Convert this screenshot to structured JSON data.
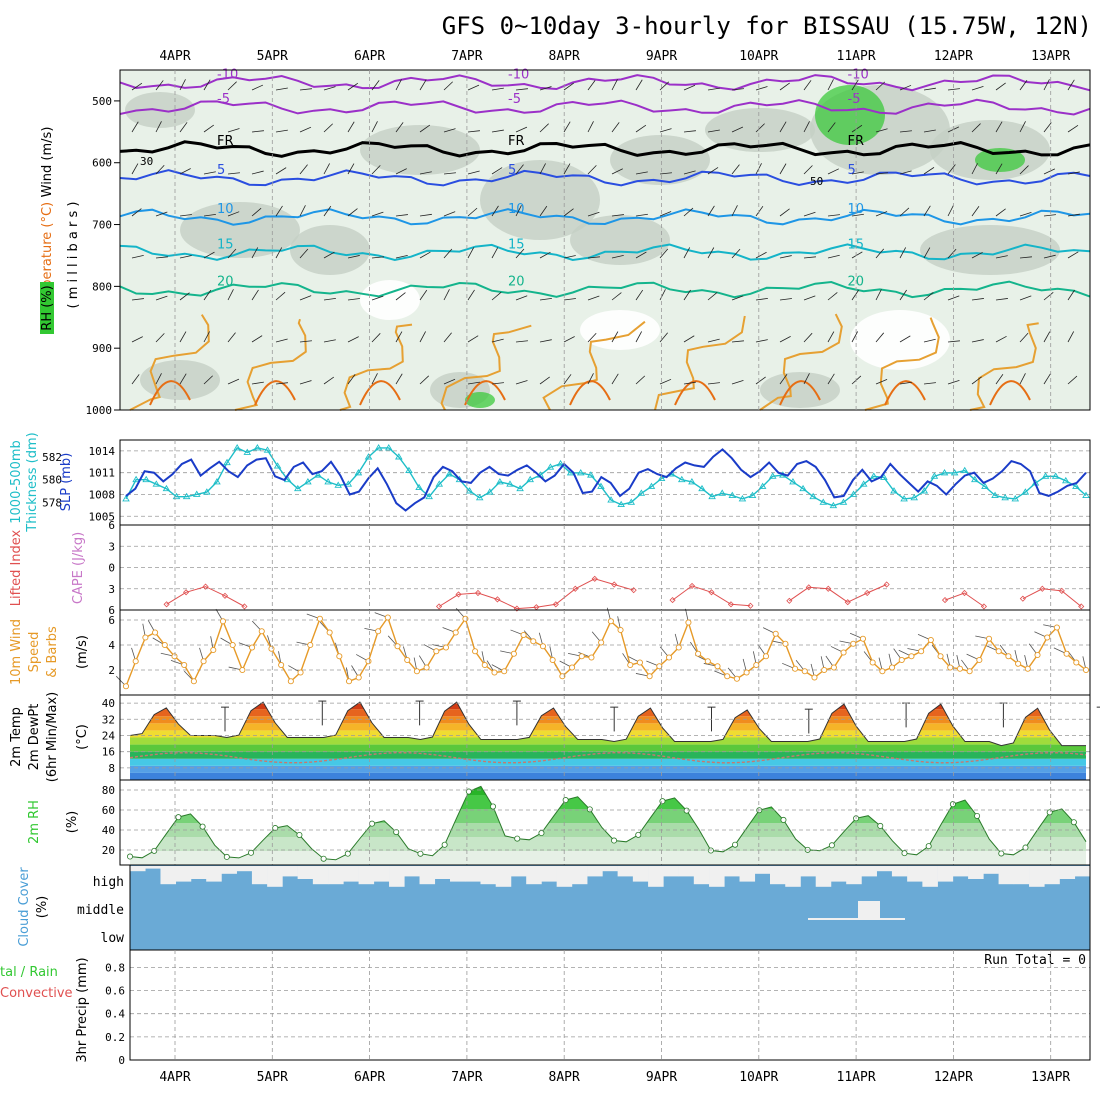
{
  "title": "GFS 0~10day 3-hourly for BISSAU (15.75W, 12N)",
  "dates": [
    "4APR",
    "5APR",
    "6APR",
    "7APR",
    "8APR",
    "9APR",
    "10APR",
    "11APR",
    "12APR",
    "13APR"
  ],
  "colors": {
    "rh_fill": "#32c832",
    "temp_5": "#9b30c8",
    "temp_fr": "#000000",
    "temp_m5": "#2a4ee0",
    "temp_10": "#1e96e6",
    "temp_15": "#14b4c8",
    "temp_20": "#14b48c",
    "temp_25": "#e6a032",
    "temp_30": "#e66e14",
    "temp_35": "#c82896",
    "thickness": "#1ebec8",
    "slp": "#1a3cc8",
    "li": "#e05050",
    "wind10": "#e69a28",
    "rh2m": "#32c832",
    "cloud": "#6aaad6",
    "cloud_gap": "#f0f0f0"
  },
  "labels": {
    "profile": [
      "Wind (m/s)",
      "Temperature (°C)",
      "RH (%)",
      "( m i l l i b a r s )"
    ],
    "thickness": [
      "1000-500mb",
      "Thickness (dm)",
      "SLP (mb)"
    ],
    "li": [
      "Lifted Index",
      "CAPE (J/kg)"
    ],
    "wind": [
      "10m Wind",
      "Speed",
      "& Barbs",
      "(m/s)"
    ],
    "temp": [
      "2m Temp",
      "2m DewPt",
      "(6hr Min/Max)",
      "(°C)"
    ],
    "rh": [
      "2m RH",
      "(%)"
    ],
    "cloud": [
      "Cloud Cover",
      "(%)",
      "high",
      "middle",
      "low"
    ],
    "precip": [
      "tal / Rain",
      "Convective",
      "3hr Precip (mm)"
    ],
    "run_total": "Run Total = 0"
  },
  "chart_data": [
    {
      "type": "heatmap",
      "panel": "upper-air time-height cross section",
      "y_axis": {
        "label": "( m i l l i b a r s )",
        "ticks": [
          500,
          600,
          700,
          800,
          900,
          1000
        ],
        "range": [
          450,
          1000
        ],
        "inverted": true
      },
      "x_axis": {
        "ticks": [
          "4APR",
          "5APR",
          "6APR",
          "7APR",
          "8APR",
          "9APR",
          "10APR",
          "11APR",
          "12APR",
          "13APR"
        ]
      },
      "temperature_contours": [
        {
          "label": "-10",
          "pressure": 470
        },
        {
          "label": "-5",
          "pressure": 510
        },
        {
          "label": "FR",
          "pressure": 578
        },
        {
          "label": "5",
          "pressure": 625
        },
        {
          "label": "10",
          "pressure": 688
        },
        {
          "label": "15",
          "pressure": 745
        },
        {
          "label": "20",
          "pressure": 805
        }
      ],
      "rh_labels": [
        "30",
        "50"
      ]
    },
    {
      "type": "line",
      "panel": "thickness and SLP",
      "series": [
        {
          "name": "1000-500mb Thickness (dm)",
          "axis": "left",
          "ticks": [
            578,
            580,
            582
          ],
          "values": [
            578.3,
            580,
            580,
            579.6,
            579.2,
            578.5,
            578.5,
            578.7,
            578.9,
            579.8,
            581.5,
            582.8,
            582.4,
            582.8,
            582.6,
            581.2,
            580.0,
            579.2,
            579.8,
            580.4,
            579.8,
            579.5,
            579.6,
            580.6,
            582,
            582.8,
            582.8,
            582.0,
            580.8,
            579.3,
            578.5,
            579.6,
            580.5,
            580.0,
            579.0,
            578.4,
            578.9,
            579.8,
            579.6,
            579.2,
            580.0,
            580.4,
            581.1,
            581.4,
            580.6,
            580.6,
            580.4,
            579.4,
            578.2,
            577.8,
            578.0,
            578.8,
            579.4,
            580.1,
            580.5,
            580.0,
            579.8,
            579.2,
            578.5,
            578.8,
            578.6,
            578.3,
            578.6,
            579.4,
            580.3,
            580.4,
            579.8,
            579.2,
            578.5,
            578.0,
            577.7,
            578.0,
            578.7,
            579.6,
            580.3,
            580.2,
            579.0,
            578.3,
            578.4,
            579.0,
            580.3,
            580.6,
            580.6,
            580.8,
            580.0,
            579.4,
            578.6,
            578.4,
            578.3,
            578.9,
            579.7,
            580.3,
            580.3,
            579.9,
            579.4,
            578.6
          ]
        },
        {
          "name": "SLP (mb)",
          "axis": "right",
          "ticks": [
            1005,
            1008,
            1011,
            1014
          ],
          "values": [
            1007.8,
            1008.8,
            1011.2,
            1011.0,
            1009.8,
            1010.8,
            1012.2,
            1012.8,
            1010.6,
            1011.6,
            1012.5,
            1011.2,
            1010.4,
            1012.0,
            1012.8,
            1013.0,
            1010.5,
            1010.0,
            1011.8,
            1012.4,
            1010.8,
            1011.2,
            1012.5,
            1010.6,
            1008.0,
            1008.4,
            1010.2,
            1011.6,
            1009.4,
            1006.8,
            1005.8,
            1006.8,
            1007.6,
            1010.4,
            1011.8,
            1011.2,
            1009.8,
            1009.6,
            1011.0,
            1011.8,
            1010.8,
            1010.6,
            1011.4,
            1012.0,
            1011.0,
            1009.8,
            1010.6,
            1012.2,
            1011.0,
            1008.2,
            1008.4,
            1010.4,
            1009.6,
            1007.8,
            1008.8,
            1011.0,
            1011.5,
            1010.8,
            1010.4,
            1011.6,
            1012.4,
            1012.0,
            1011.8,
            1013.2,
            1014.2,
            1013.0,
            1011.4,
            1010.4,
            1011.2,
            1012.4,
            1011.0,
            1010.6,
            1012.2,
            1012.6,
            1011.8,
            1010.0,
            1007.6,
            1007.8,
            1010.0,
            1011.4,
            1009.8,
            1010.4,
            1012.2,
            1010.8,
            1009.6,
            1008.4,
            1009.8,
            1009.2,
            1008.0,
            1009.4,
            1010.6,
            1011.0,
            1009.6,
            1010.2,
            1011.2,
            1012.6,
            1012.2,
            1011.2,
            1008.2,
            1007.8,
            1008.4,
            1009.2,
            1009.6,
            1011.0
          ]
        }
      ]
    },
    {
      "type": "line",
      "panel": "lifted index and CAPE",
      "y_axis": {
        "ticks": [
          -6,
          -3,
          0,
          3,
          6
        ],
        "tick_labels": [
          "6",
          "3",
          "0",
          "3",
          "6"
        ],
        "inverted": true
      },
      "series": [
        {
          "name": "Lifted Index",
          "x_day": [
            0.4,
            0.6,
            0.8,
            1.0,
            1.2,
            3.2,
            3.4,
            3.6,
            3.8,
            4.0,
            4.2,
            4.4,
            4.6,
            4.8,
            5.0,
            5.2,
            5.6,
            5.8,
            6.0,
            6.2,
            6.4,
            6.8,
            7.0,
            7.2,
            7.4,
            7.6,
            7.8,
            8.4,
            8.6,
            8.8,
            9.2,
            9.4,
            9.6,
            9.8
          ],
          "values": [
            5.2,
            3.5,
            2.7,
            4.0,
            5.5,
            5.5,
            3.8,
            3.6,
            4.5,
            5.8,
            5.6,
            5.2,
            3.0,
            1.6,
            2.4,
            3.2,
            4.6,
            2.6,
            3.5,
            5.2,
            5.4,
            4.7,
            2.8,
            3.0,
            4.9,
            3.6,
            2.4,
            4.6,
            3.6,
            5.5,
            4.4,
            3.0,
            3.3,
            5.5
          ]
        }
      ]
    },
    {
      "type": "line",
      "panel": "10m wind speed",
      "y_axis": {
        "ticks": [
          2,
          4,
          6
        ],
        "label": "(m/s)"
      },
      "series": [
        {
          "name": "10m Wind Speed",
          "values": [
            0.7,
            2.7,
            4.6,
            5.0,
            4.0,
            3.1,
            2.4,
            1.1,
            2.7,
            3.6,
            5.9,
            4.0,
            2.0,
            3.8,
            5.1,
            3.7,
            2.4,
            1.1,
            1.8,
            4.0,
            6.1,
            5.0,
            3.1,
            1.1,
            1.4,
            2.7,
            5.1,
            6.2,
            3.9,
            2.8,
            1.9,
            2.2,
            3.5,
            3.8,
            5.0,
            6.1,
            3.5,
            2.4,
            1.8,
            1.9,
            3.3,
            4.8,
            4.3,
            3.9,
            2.8,
            1.5,
            2.2,
            3.1,
            3.0,
            4.2,
            5.9,
            5.2,
            2.4,
            2.6,
            1.5,
            2.3,
            3.0,
            3.8,
            5.8,
            3.3,
            2.7,
            2.3,
            1.5,
            1.3,
            1.8,
            2.4,
            3.1,
            4.9,
            4.1,
            2.1,
            1.9,
            1.4,
            2.0,
            2.2,
            3.4,
            4.1,
            4.5,
            2.6,
            1.9,
            2.2,
            2.8,
            3.1,
            3.5,
            4.4,
            3.1,
            2.2,
            2.1,
            1.9,
            2.8,
            4.5,
            3.5,
            3.1,
            2.5,
            2.1,
            3.2,
            4.6,
            5.4,
            3.3,
            2.6,
            2.0
          ]
        }
      ]
    },
    {
      "type": "area",
      "panel": "2m temperature and dewpoint",
      "y_axis": {
        "ticks": [
          8,
          16,
          24,
          32,
          40
        ],
        "label": "(°C)"
      },
      "series": [
        {
          "name": "2m Temp",
          "day_max": [
            38,
            41,
            41,
            41,
            38,
            38,
            37,
            40,
            40,
            38
          ],
          "night_min": [
            24,
            23,
            23,
            22,
            22,
            21,
            21,
            21,
            21,
            19
          ]
        },
        {
          "name": "2m DewPt",
          "approx_range": [
            10,
            16
          ]
        }
      ]
    },
    {
      "type": "area",
      "panel": "2m relative humidity",
      "y_axis": {
        "ticks": [
          20,
          40,
          60,
          80
        ],
        "label": "(%)"
      },
      "series": [
        {
          "name": "2m RH",
          "day_min": [
            12,
            12,
            10,
            14,
            30,
            28,
            18,
            19,
            15,
            15
          ],
          "night_max": [
            57,
            45,
            50,
            85,
            74,
            73,
            64,
            55,
            71,
            62
          ]
        }
      ]
    },
    {
      "type": "bar",
      "panel": "cloud cover",
      "categories": [
        "high",
        "middle",
        "low"
      ],
      "series": [
        {
          "name": "high",
          "values_pct": [
            80,
            90,
            30,
            40,
            50,
            40,
            70,
            80,
            30,
            20,
            60,
            50,
            30,
            30,
            40,
            30,
            40,
            20,
            60,
            30,
            50,
            40,
            40,
            30,
            20,
            60,
            30,
            40,
            20,
            30,
            60,
            80,
            60,
            40,
            20,
            60,
            60,
            30,
            20,
            60,
            40,
            70,
            30,
            20,
            60,
            20,
            40,
            30,
            60,
            80,
            60,
            40,
            20,
            40,
            60,
            50,
            70,
            30,
            30,
            20,
            30,
            50,
            60
          ]
        },
        {
          "name": "middle",
          "values_pct": [
            0,
            0,
            0,
            0,
            0,
            0,
            0,
            0,
            0,
            0,
            0,
            0,
            0,
            0,
            0,
            0,
            0,
            0,
            0,
            0,
            0,
            0,
            0,
            0,
            0,
            0,
            0,
            0,
            0,
            0,
            0,
            0,
            0,
            0,
            0,
            0,
            0,
            0,
            0,
            0,
            0,
            0,
            0,
            0,
            0,
            0,
            0,
            0,
            0,
            0,
            0,
            0,
            0,
            0,
            0,
            0,
            0,
            0,
            0,
            0,
            0,
            0,
            0
          ]
        },
        {
          "name": "low",
          "values_pct": [
            0,
            0,
            0,
            0,
            0,
            0,
            0,
            0,
            0,
            0,
            0,
            0,
            0,
            0,
            0,
            0,
            0,
            0,
            0,
            0,
            0,
            0,
            0,
            0,
            0,
            0,
            0,
            0,
            0,
            0,
            0,
            0,
            0,
            0,
            0,
            0,
            0,
            0,
            0,
            0,
            0,
            0,
            0,
            0,
            0,
            0,
            0,
            0,
            0,
            0,
            0,
            0,
            0,
            0,
            0,
            0,
            0,
            0,
            0,
            0,
            0,
            0,
            0
          ]
        }
      ]
    },
    {
      "type": "bar",
      "panel": "3hr precipitation",
      "y_axis": {
        "ticks": [
          0,
          0.2,
          0.4,
          0.6,
          0.8
        ],
        "label": "3hr Precip (mm)"
      },
      "series": [
        {
          "name": "Total / Rain",
          "values": []
        },
        {
          "name": "Convective",
          "values": []
        }
      ],
      "run_total": 0
    }
  ]
}
